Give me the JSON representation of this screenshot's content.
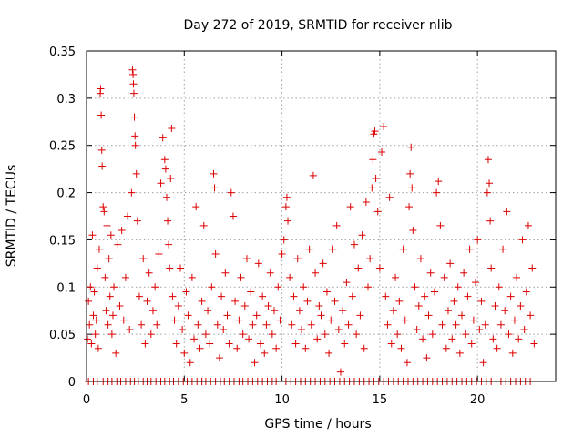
{
  "chart_data": {
    "type": "scatter",
    "title": "Day 272 of 2019, SRMTID for receiver nlib",
    "xlabel": "GPS time / hours",
    "ylabel": "SRMTID / TECUs",
    "xlim": [
      0,
      24
    ],
    "ylim": [
      0,
      0.35
    ],
    "grid": true,
    "x_ticks": [
      0,
      5,
      10,
      15,
      20
    ],
    "x_tick_labels": [
      "0",
      "5",
      "10",
      "15",
      "20"
    ],
    "y_ticks": [
      0,
      0.05,
      0.1,
      0.15,
      0.2,
      0.25,
      0.3,
      0.35
    ],
    "y_tick_labels": [
      "0",
      "0.05",
      "0.1",
      "0.15",
      "0.2",
      "0.25",
      "0.3",
      "0.35"
    ],
    "marker": "+",
    "color": "#dd0000",
    "series": [
      {
        "name": "SRMTID",
        "points": [
          [
            0.05,
            0.045
          ],
          [
            0.1,
            0.085
          ],
          [
            0.15,
            0.06
          ],
          [
            0.2,
            0.1
          ],
          [
            0.25,
            0.04
          ],
          [
            0.3,
            0.155
          ],
          [
            0.35,
            0.07
          ],
          [
            0.4,
            0.095
          ],
          [
            0.45,
            0.05
          ],
          [
            0.5,
            0.065
          ],
          [
            0.55,
            0.12
          ],
          [
            0.6,
            0.035
          ],
          [
            0.65,
            0.14
          ],
          [
            0.7,
            0.305
          ],
          [
            0.72,
            0.31
          ],
          [
            0.75,
            0.282
          ],
          [
            0.78,
            0.245
          ],
          [
            0.8,
            0.228
          ],
          [
            0.85,
            0.185
          ],
          [
            0.9,
            0.18
          ],
          [
            0.95,
            0.11
          ],
          [
            1.0,
            0.075
          ],
          [
            1.05,
            0.165
          ],
          [
            1.1,
            0.06
          ],
          [
            1.15,
            0.13
          ],
          [
            1.2,
            0.09
          ],
          [
            1.25,
            0.155
          ],
          [
            1.3,
            0.05
          ],
          [
            1.35,
            0.07
          ],
          [
            1.4,
            0.1
          ],
          [
            1.5,
            0.03
          ],
          [
            1.6,
            0.145
          ],
          [
            1.7,
            0.08
          ],
          [
            1.8,
            0.16
          ],
          [
            1.9,
            0.065
          ],
          [
            2.0,
            0.11
          ],
          [
            2.1,
            0.175
          ],
          [
            2.2,
            0.055
          ],
          [
            2.3,
            0.2
          ],
          [
            2.35,
            0.33
          ],
          [
            2.38,
            0.325
          ],
          [
            2.4,
            0.315
          ],
          [
            2.42,
            0.305
          ],
          [
            2.45,
            0.28
          ],
          [
            2.48,
            0.26
          ],
          [
            2.5,
            0.25
          ],
          [
            2.55,
            0.22
          ],
          [
            2.6,
            0.17
          ],
          [
            2.7,
            0.09
          ],
          [
            2.8,
            0.06
          ],
          [
            2.9,
            0.13
          ],
          [
            3.0,
            0.04
          ],
          [
            3.1,
            0.085
          ],
          [
            3.2,
            0.115
          ],
          [
            3.3,
            0.05
          ],
          [
            3.4,
            0.075
          ],
          [
            3.5,
            0.1
          ],
          [
            3.6,
            0.06
          ],
          [
            3.7,
            0.135
          ],
          [
            3.8,
            0.21
          ],
          [
            3.9,
            0.258
          ],
          [
            4.0,
            0.235
          ],
          [
            4.05,
            0.225
          ],
          [
            4.1,
            0.195
          ],
          [
            4.15,
            0.17
          ],
          [
            4.2,
            0.145
          ],
          [
            4.25,
            0.12
          ],
          [
            4.3,
            0.215
          ],
          [
            4.35,
            0.268
          ],
          [
            4.4,
            0.09
          ],
          [
            4.5,
            0.065
          ],
          [
            4.6,
            0.04
          ],
          [
            4.7,
            0.08
          ],
          [
            4.8,
            0.12
          ],
          [
            4.9,
            0.055
          ],
          [
            5.0,
            0.03
          ],
          [
            5.1,
            0.095
          ],
          [
            5.2,
            0.07
          ],
          [
            5.3,
            0.02
          ],
          [
            5.4,
            0.11
          ],
          [
            5.5,
            0.045
          ],
          [
            5.6,
            0.185
          ],
          [
            5.7,
            0.06
          ],
          [
            5.8,
            0.035
          ],
          [
            5.9,
            0.085
          ],
          [
            6.0,
            0.165
          ],
          [
            6.1,
            0.05
          ],
          [
            6.2,
            0.075
          ],
          [
            6.3,
            0.04
          ],
          [
            6.4,
            0.1
          ],
          [
            6.5,
            0.22
          ],
          [
            6.55,
            0.205
          ],
          [
            6.6,
            0.135
          ],
          [
            6.7,
            0.06
          ],
          [
            6.8,
            0.025
          ],
          [
            6.9,
            0.09
          ],
          [
            7.0,
            0.055
          ],
          [
            7.1,
            0.115
          ],
          [
            7.2,
            0.07
          ],
          [
            7.3,
            0.04
          ],
          [
            7.4,
            0.2
          ],
          [
            7.5,
            0.175
          ],
          [
            7.6,
            0.085
          ],
          [
            7.7,
            0.035
          ],
          [
            7.8,
            0.065
          ],
          [
            7.9,
            0.11
          ],
          [
            8.0,
            0.05
          ],
          [
            8.1,
            0.08
          ],
          [
            8.2,
            0.13
          ],
          [
            8.3,
            0.045
          ],
          [
            8.4,
            0.095
          ],
          [
            8.5,
            0.06
          ],
          [
            8.6,
            0.02
          ],
          [
            8.7,
            0.07
          ],
          [
            8.8,
            0.125
          ],
          [
            8.9,
            0.04
          ],
          [
            9.0,
            0.09
          ],
          [
            9.1,
            0.03
          ],
          [
            9.2,
            0.06
          ],
          [
            9.3,
            0.08
          ],
          [
            9.4,
            0.115
          ],
          [
            9.5,
            0.05
          ],
          [
            9.6,
            0.075
          ],
          [
            9.7,
            0.035
          ],
          [
            9.8,
            0.1
          ],
          [
            9.9,
            0.065
          ],
          [
            10.0,
            0.135
          ],
          [
            10.1,
            0.15
          ],
          [
            10.2,
            0.185
          ],
          [
            10.25,
            0.195
          ],
          [
            10.3,
            0.17
          ],
          [
            10.4,
            0.11
          ],
          [
            10.5,
            0.06
          ],
          [
            10.6,
            0.09
          ],
          [
            10.7,
            0.04
          ],
          [
            10.8,
            0.13
          ],
          [
            10.9,
            0.075
          ],
          [
            11.0,
            0.055
          ],
          [
            11.1,
            0.1
          ],
          [
            11.2,
            0.035
          ],
          [
            11.3,
            0.085
          ],
          [
            11.4,
            0.14
          ],
          [
            11.5,
            0.06
          ],
          [
            11.6,
            0.218
          ],
          [
            11.7,
            0.115
          ],
          [
            11.8,
            0.045
          ],
          [
            11.9,
            0.08
          ],
          [
            12.0,
            0.07
          ],
          [
            12.1,
            0.125
          ],
          [
            12.2,
            0.05
          ],
          [
            12.3,
            0.095
          ],
          [
            12.4,
            0.03
          ],
          [
            12.5,
            0.065
          ],
          [
            12.6,
            0.14
          ],
          [
            12.7,
            0.085
          ],
          [
            12.8,
            0.165
          ],
          [
            12.9,
            0.055
          ],
          [
            13.0,
            0.01
          ],
          [
            13.1,
            0.075
          ],
          [
            13.2,
            0.04
          ],
          [
            13.3,
            0.105
          ],
          [
            13.4,
            0.06
          ],
          [
            13.5,
            0.185
          ],
          [
            13.6,
            0.09
          ],
          [
            13.7,
            0.145
          ],
          [
            13.8,
            0.05
          ],
          [
            13.9,
            0.12
          ],
          [
            14.0,
            0.07
          ],
          [
            14.1,
            0.155
          ],
          [
            14.2,
            0.035
          ],
          [
            14.3,
            0.19
          ],
          [
            14.4,
            0.1
          ],
          [
            14.5,
            0.13
          ],
          [
            14.6,
            0.205
          ],
          [
            14.65,
            0.235
          ],
          [
            14.7,
            0.262
          ],
          [
            14.75,
            0.265
          ],
          [
            14.8,
            0.215
          ],
          [
            14.9,
            0.18
          ],
          [
            15.0,
            0.12
          ],
          [
            15.1,
            0.243
          ],
          [
            15.2,
            0.27
          ],
          [
            15.3,
            0.09
          ],
          [
            15.4,
            0.06
          ],
          [
            15.5,
            0.195
          ],
          [
            15.6,
            0.04
          ],
          [
            15.7,
            0.075
          ],
          [
            15.8,
            0.11
          ],
          [
            15.9,
            0.05
          ],
          [
            16.0,
            0.085
          ],
          [
            16.1,
            0.035
          ],
          [
            16.2,
            0.14
          ],
          [
            16.3,
            0.065
          ],
          [
            16.4,
            0.02
          ],
          [
            16.5,
            0.185
          ],
          [
            16.55,
            0.22
          ],
          [
            16.6,
            0.248
          ],
          [
            16.65,
            0.205
          ],
          [
            16.7,
            0.16
          ],
          [
            16.8,
            0.1
          ],
          [
            16.9,
            0.055
          ],
          [
            17.0,
            0.08
          ],
          [
            17.1,
            0.13
          ],
          [
            17.2,
            0.045
          ],
          [
            17.3,
            0.09
          ],
          [
            17.4,
            0.025
          ],
          [
            17.5,
            0.07
          ],
          [
            17.6,
            0.115
          ],
          [
            17.7,
            0.05
          ],
          [
            17.8,
            0.095
          ],
          [
            17.9,
            0.2
          ],
          [
            18.0,
            0.212
          ],
          [
            18.1,
            0.165
          ],
          [
            18.2,
            0.06
          ],
          [
            18.3,
            0.11
          ],
          [
            18.4,
            0.035
          ],
          [
            18.5,
            0.075
          ],
          [
            18.6,
            0.125
          ],
          [
            18.7,
            0.045
          ],
          [
            18.8,
            0.085
          ],
          [
            18.9,
            0.06
          ],
          [
            19.0,
            0.1
          ],
          [
            19.1,
            0.03
          ],
          [
            19.2,
            0.07
          ],
          [
            19.3,
            0.115
          ],
          [
            19.4,
            0.05
          ],
          [
            19.5,
            0.09
          ],
          [
            19.6,
            0.14
          ],
          [
            19.7,
            0.04
          ],
          [
            19.8,
            0.065
          ],
          [
            19.9,
            0.105
          ],
          [
            20.0,
            0.15
          ],
          [
            20.1,
            0.055
          ],
          [
            20.2,
            0.085
          ],
          [
            20.3,
            0.02
          ],
          [
            20.4,
            0.06
          ],
          [
            20.5,
            0.2
          ],
          [
            20.55,
            0.235
          ],
          [
            20.6,
            0.21
          ],
          [
            20.65,
            0.17
          ],
          [
            20.7,
            0.12
          ],
          [
            20.8,
            0.045
          ],
          [
            20.9,
            0.08
          ],
          [
            21.0,
            0.035
          ],
          [
            21.1,
            0.1
          ],
          [
            21.2,
            0.06
          ],
          [
            21.3,
            0.14
          ],
          [
            21.4,
            0.075
          ],
          [
            21.5,
            0.18
          ],
          [
            21.6,
            0.05
          ],
          [
            21.7,
            0.09
          ],
          [
            21.8,
            0.03
          ],
          [
            21.9,
            0.065
          ],
          [
            22.0,
            0.11
          ],
          [
            22.1,
            0.045
          ],
          [
            22.2,
            0.08
          ],
          [
            22.3,
            0.15
          ],
          [
            22.4,
            0.055
          ],
          [
            22.5,
            0.095
          ],
          [
            22.6,
            0.165
          ],
          [
            22.7,
            0.07
          ],
          [
            22.8,
            0.12
          ],
          [
            22.9,
            0.04
          ]
        ]
      }
    ],
    "zero_band": {
      "y": 0,
      "x": [
        0.1,
        0.35,
        0.55,
        0.85,
        1.1,
        1.3,
        1.55,
        1.75,
        2.0,
        2.25,
        2.45,
        2.65,
        2.9,
        3.1,
        3.3,
        3.55,
        3.8,
        4.0,
        4.25,
        4.45,
        4.7,
        4.95,
        5.15,
        5.4,
        5.65,
        5.9,
        6.1,
        6.35,
        6.6,
        6.85,
        7.05,
        7.3,
        7.55,
        7.8,
        8.0,
        8.25,
        8.5,
        8.75,
        9.0,
        9.25,
        9.5,
        9.7,
        9.95,
        10.2,
        10.45,
        10.7,
        10.95,
        11.2,
        11.45,
        11.7,
        11.95,
        12.2,
        12.45,
        12.7,
        12.95,
        13.2,
        13.45,
        13.7,
        13.95,
        14.2,
        14.45,
        14.7,
        14.95,
        15.2,
        15.45,
        15.7,
        15.95,
        16.2,
        16.45,
        16.7,
        16.95,
        17.2,
        17.45,
        17.7,
        17.95,
        18.2,
        18.45,
        18.7,
        18.95,
        19.2,
        19.45,
        19.7,
        19.95,
        20.2,
        20.45,
        20.7,
        20.95,
        21.2,
        21.45,
        21.7,
        21.95,
        22.2,
        22.45,
        22.7
      ]
    }
  }
}
